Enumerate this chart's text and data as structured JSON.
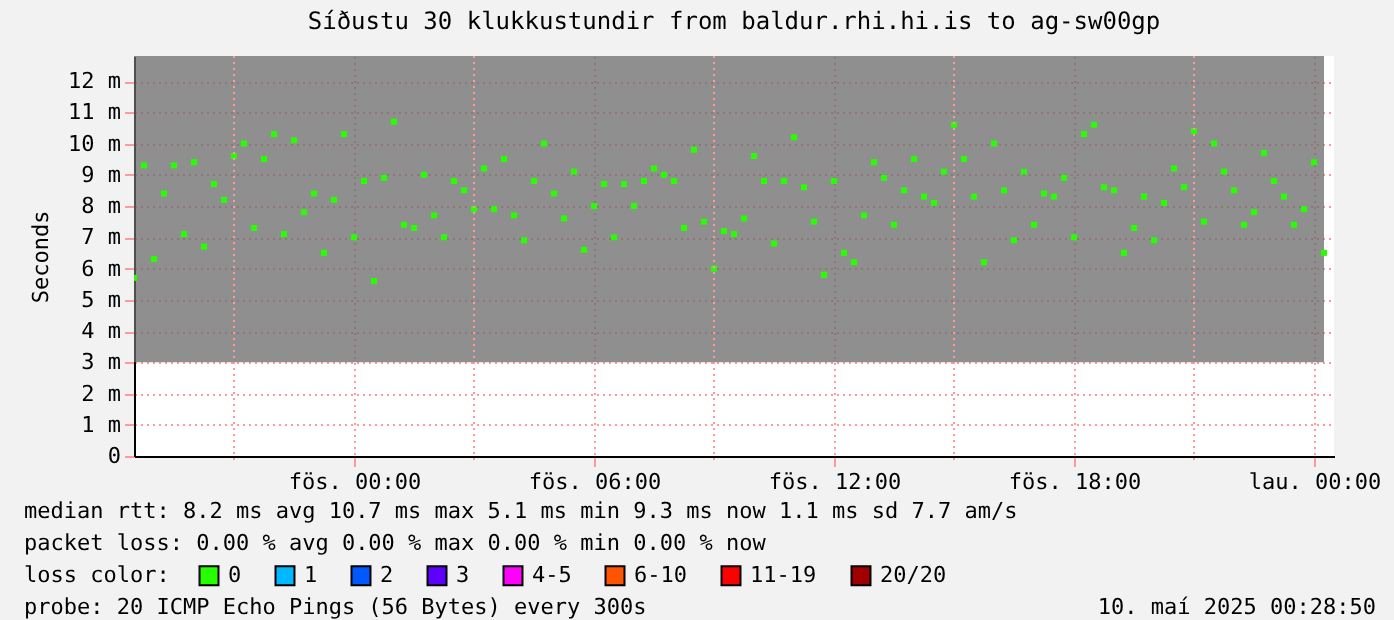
{
  "chart_data": {
    "type": "scatter",
    "title": "Síðustu 30 klukkustundir from baldur.rhi.hi.is to ag-sw00gp",
    "ylabel": "Seconds",
    "legend_title": "loss color:",
    "legend": "bottom",
    "marker": "square",
    "grid": true,
    "xlim": [
      "2025-05-08T18:30",
      "2025-05-10T00:30"
    ],
    "xticks": [
      {
        "value": "2025-05-08T21:00",
        "label": null
      },
      {
        "value": "2025-05-09T00:00",
        "label": "fös. 00:00"
      },
      {
        "value": "2025-05-09T03:00",
        "label": null
      },
      {
        "value": "2025-05-09T06:00",
        "label": "fös. 06:00"
      },
      {
        "value": "2025-05-09T09:00",
        "label": null
      },
      {
        "value": "2025-05-09T12:00",
        "label": "fös. 12:00"
      },
      {
        "value": "2025-05-09T15:00",
        "label": null
      },
      {
        "value": "2025-05-09T18:00",
        "label": "fös. 18:00"
      },
      {
        "value": "2025-05-09T21:00",
        "label": null
      },
      {
        "value": "2025-05-10T00:00",
        "label": "lau. 00:00"
      }
    ],
    "ylim": [
      0,
      12.8
    ],
    "yticks": [
      0,
      {
        "value": 1,
        "label": "1 m"
      },
      {
        "value": 2,
        "label": "2 m"
      },
      {
        "value": 3,
        "label": "3 m"
      },
      {
        "value": 4,
        "label": "4 m"
      },
      {
        "value": 5,
        "label": "5 m"
      },
      {
        "value": 6,
        "label": "6 m"
      },
      {
        "value": 7,
        "label": "7 m"
      },
      {
        "value": 8,
        "label": "8 m"
      },
      {
        "value": 9,
        "label": "9 m"
      },
      {
        "value": 10,
        "label": "10 m"
      },
      {
        "value": 11,
        "label": "11 m"
      },
      {
        "value": 12,
        "label": "12 m"
      }
    ],
    "x": [
      "2025-05-08T18:30",
      "2025-05-08T18:45",
      "2025-05-08T19:00",
      "2025-05-08T19:15",
      "2025-05-08T19:30",
      "2025-05-08T19:45",
      "2025-05-08T20:00",
      "2025-05-08T20:15",
      "2025-05-08T20:30",
      "2025-05-08T20:45",
      "2025-05-08T21:00",
      "2025-05-08T21:15",
      "2025-05-08T21:30",
      "2025-05-08T21:45",
      "2025-05-08T22:00",
      "2025-05-08T22:15",
      "2025-05-08T22:30",
      "2025-05-08T22:45",
      "2025-05-08T23:00",
      "2025-05-08T23:15",
      "2025-05-08T23:30",
      "2025-05-08T23:45",
      "2025-05-09T00:00",
      "2025-05-09T00:15",
      "2025-05-09T00:30",
      "2025-05-09T00:45",
      "2025-05-09T01:00",
      "2025-05-09T01:15",
      "2025-05-09T01:30",
      "2025-05-09T01:45",
      "2025-05-09T02:00",
      "2025-05-09T02:15",
      "2025-05-09T02:30",
      "2025-05-09T02:45",
      "2025-05-09T03:00",
      "2025-05-09T03:15",
      "2025-05-09T03:30",
      "2025-05-09T03:45",
      "2025-05-09T04:00",
      "2025-05-09T04:15",
      "2025-05-09T04:30",
      "2025-05-09T04:45",
      "2025-05-09T05:00",
      "2025-05-09T05:15",
      "2025-05-09T05:30",
      "2025-05-09T05:45",
      "2025-05-09T06:00",
      "2025-05-09T06:15",
      "2025-05-09T06:30",
      "2025-05-09T06:45",
      "2025-05-09T07:00",
      "2025-05-09T07:15",
      "2025-05-09T07:30",
      "2025-05-09T07:45",
      "2025-05-09T08:00",
      "2025-05-09T08:15",
      "2025-05-09T08:30",
      "2025-05-09T08:45",
      "2025-05-09T09:00",
      "2025-05-09T09:15",
      "2025-05-09T09:30",
      "2025-05-09T09:45",
      "2025-05-09T10:00",
      "2025-05-09T10:15",
      "2025-05-09T10:30",
      "2025-05-09T10:45",
      "2025-05-09T11:00",
      "2025-05-09T11:15",
      "2025-05-09T11:30",
      "2025-05-09T11:45",
      "2025-05-09T12:00",
      "2025-05-09T12:15",
      "2025-05-09T12:30",
      "2025-05-09T12:45",
      "2025-05-09T13:00",
      "2025-05-09T13:15",
      "2025-05-09T13:30",
      "2025-05-09T13:45",
      "2025-05-09T14:00",
      "2025-05-09T14:15",
      "2025-05-09T14:30",
      "2025-05-09T14:45",
      "2025-05-09T15:00",
      "2025-05-09T15:15",
      "2025-05-09T15:30",
      "2025-05-09T15:45",
      "2025-05-09T16:00",
      "2025-05-09T16:15",
      "2025-05-09T16:30",
      "2025-05-09T16:45",
      "2025-05-09T17:00",
      "2025-05-09T17:15",
      "2025-05-09T17:30",
      "2025-05-09T17:45",
      "2025-05-09T18:00",
      "2025-05-09T18:15",
      "2025-05-09T18:30",
      "2025-05-09T18:45",
      "2025-05-09T19:00",
      "2025-05-09T19:15",
      "2025-05-09T19:30",
      "2025-05-09T19:45",
      "2025-05-09T20:00",
      "2025-05-09T20:15",
      "2025-05-09T20:30",
      "2025-05-09T20:45",
      "2025-05-09T21:00",
      "2025-05-09T21:15",
      "2025-05-09T21:30",
      "2025-05-09T21:45",
      "2025-05-09T22:00",
      "2025-05-09T22:15",
      "2025-05-09T22:30",
      "2025-05-09T22:45",
      "2025-05-09T23:00",
      "2025-05-09T23:15",
      "2025-05-09T23:30",
      "2025-05-09T23:45",
      "2025-05-10T00:00",
      "2025-05-10T00:15"
    ],
    "series": [
      {
        "name": "0",
        "color": "#26ff00",
        "values": [
          5.7,
          9.3,
          6.3,
          8.4,
          9.3,
          7.1,
          9.4,
          6.7,
          8.7,
          8.2,
          9.6,
          10.0,
          7.3,
          9.5,
          10.3,
          7.1,
          10.1,
          7.8,
          8.4,
          6.5,
          8.2,
          10.3,
          7.0,
          8.8,
          5.6,
          8.9,
          10.7,
          7.4,
          7.3,
          9.0,
          7.7,
          7.0,
          8.8,
          8.5,
          7.9,
          9.2,
          7.9,
          9.5,
          7.7,
          6.9,
          8.8,
          10.0,
          8.4,
          7.6,
          9.1,
          6.6,
          8.0,
          8.7,
          7.0,
          8.7,
          8.0,
          8.8,
          9.2,
          9.0,
          8.8,
          7.3,
          9.8,
          7.5,
          6.0,
          7.2,
          7.1,
          7.6,
          9.6,
          8.8,
          6.8,
          8.8,
          10.2,
          8.6,
          7.5,
          5.8,
          8.8,
          6.5,
          6.2,
          7.7,
          9.4,
          8.9,
          7.4,
          8.5,
          9.5,
          8.3,
          8.1,
          9.1,
          10.6,
          9.5,
          8.3,
          6.2,
          10.0,
          8.5,
          6.9,
          9.1,
          7.4,
          8.4,
          8.3,
          8.9,
          7.0,
          10.3,
          10.6,
          8.6,
          8.5,
          6.5,
          7.3,
          8.3,
          6.9,
          8.1,
          9.2,
          8.6,
          10.4,
          7.5,
          10.0,
          9.1,
          8.5,
          7.4,
          7.8,
          9.7,
          8.8,
          8.3,
          7.4,
          7.9,
          9.4,
          6.5
        ],
        "lower": [
          3,
          3,
          3,
          3,
          3,
          3,
          3,
          3,
          3,
          3,
          3,
          3,
          3,
          3,
          3,
          3,
          3,
          3,
          3,
          3,
          3,
          3,
          3,
          3,
          3,
          3,
          3,
          3,
          3,
          3,
          3,
          3,
          3,
          3,
          3,
          3,
          3,
          3,
          3,
          3,
          3,
          3,
          3,
          3,
          3,
          3,
          3,
          3,
          3,
          3,
          3,
          3,
          3,
          3,
          3,
          3,
          3,
          3,
          3,
          3,
          3,
          3,
          3,
          3,
          3,
          3,
          3,
          3,
          3,
          3,
          3,
          3,
          3,
          3,
          3,
          3,
          3,
          3,
          3,
          3,
          3,
          3,
          3,
          3,
          3,
          3,
          3,
          3,
          3,
          3,
          3,
          3,
          3,
          3,
          3,
          3,
          3,
          3,
          3,
          3,
          3,
          3,
          3,
          3,
          3,
          3,
          3,
          3,
          3,
          3,
          3,
          3,
          3,
          3,
          3,
          3,
          3,
          3,
          3,
          3
        ],
        "upper": [
          12.8,
          12.8,
          12.8,
          12.8,
          12.8,
          12.8,
          12.8,
          12.8,
          12.8,
          12.8,
          12.8,
          12.8,
          12.8,
          12.8,
          12.8,
          12.8,
          12.8,
          12.8,
          12.8,
          12.8,
          12.8,
          12.8,
          12.8,
          12.8,
          12.8,
          12.8,
          12.8,
          12.8,
          12.8,
          12.8,
          12.8,
          12.8,
          12.8,
          12.8,
          12.8,
          12.8,
          12.8,
          12.8,
          12.8,
          12.8,
          12.8,
          12.8,
          12.8,
          12.8,
          12.8,
          12.8,
          12.8,
          12.8,
          12.8,
          12.8,
          12.8,
          12.8,
          12.8,
          12.8,
          12.8,
          12.8,
          12.8,
          12.8,
          12.8,
          12.8,
          12.8,
          12.8,
          12.8,
          12.8,
          12.8,
          12.8,
          12.8,
          12.8,
          12.8,
          12.8,
          12.8,
          12.8,
          12.8,
          12.8,
          12.8,
          12.8,
          12.8,
          12.8,
          12.8,
          12.8,
          12.8,
          12.8,
          12.8,
          12.8,
          12.8,
          12.8,
          12.8,
          12.8,
          12.8,
          12.8,
          12.8,
          12.8,
          12.8,
          12.8,
          12.8,
          12.8,
          12.8,
          12.8,
          12.8,
          12.8,
          12.8,
          12.8,
          12.8,
          12.8,
          12.8,
          12.8,
          12.8,
          12.8,
          12.8,
          12.8,
          12.8,
          12.8,
          12.8,
          12.8,
          12.8,
          12.8,
          12.8,
          12.8,
          12.8,
          12.8
        ]
      },
      {
        "name": "1",
        "color": "#00b8ff",
        "values": [
          null,
          null,
          null,
          null,
          null,
          null,
          null,
          null,
          null,
          null,
          null,
          null,
          null,
          null,
          null,
          null,
          null,
          null,
          null,
          null,
          null,
          null,
          null,
          null,
          null,
          null,
          null,
          null,
          null,
          null,
          null,
          null,
          null,
          null,
          null,
          null,
          null,
          null,
          null,
          null,
          null,
          null,
          null,
          null,
          null,
          null,
          null,
          null,
          null,
          null,
          null,
          null,
          null,
          null,
          null,
          null,
          null,
          null,
          null,
          null,
          null,
          null,
          null,
          null,
          null,
          null,
          null,
          null,
          null,
          null,
          null,
          null,
          null,
          null,
          null,
          null,
          null,
          null,
          null,
          null,
          null,
          null,
          null,
          null,
          null,
          null,
          null,
          null,
          null,
          null,
          null,
          null,
          null,
          null,
          null,
          null,
          null,
          null,
          null,
          null,
          null,
          null,
          null,
          null,
          null,
          null,
          null,
          null,
          null,
          null,
          null,
          null,
          null,
          null,
          null,
          null,
          null,
          null,
          null,
          null
        ]
      },
      {
        "name": "2",
        "color": "#0059ff",
        "values": [
          null,
          null,
          null,
          null,
          null,
          null,
          null,
          null,
          null,
          null,
          null,
          null,
          null,
          null,
          null,
          null,
          null,
          null,
          null,
          null,
          null,
          null,
          null,
          null,
          null,
          null,
          null,
          null,
          null,
          null,
          null,
          null,
          null,
          null,
          null,
          null,
          null,
          null,
          null,
          null,
          null,
          null,
          null,
          null,
          null,
          null,
          null,
          null,
          null,
          null,
          null,
          null,
          null,
          null,
          null,
          null,
          null,
          null,
          null,
          null,
          null,
          null,
          null,
          null,
          null,
          null,
          null,
          null,
          null,
          null,
          null,
          null,
          null,
          null,
          null,
          null,
          null,
          null,
          null,
          null,
          null,
          null,
          null,
          null,
          null,
          null,
          null,
          null,
          null,
          null,
          null,
          null,
          null,
          null,
          null,
          null,
          null,
          null,
          null,
          null,
          null,
          null,
          null,
          null,
          null,
          null,
          null,
          null,
          null,
          null,
          null,
          null,
          null,
          null,
          null,
          null,
          null,
          null,
          null,
          null
        ]
      },
      {
        "name": "3",
        "color": "#5e00ff",
        "values": [
          null,
          null,
          null,
          null,
          null,
          null,
          null,
          null,
          null,
          null,
          null,
          null,
          null,
          null,
          null,
          null,
          null,
          null,
          null,
          null,
          null,
          null,
          null,
          null,
          null,
          null,
          null,
          null,
          null,
          null,
          null,
          null,
          null,
          null,
          null,
          null,
          null,
          null,
          null,
          null,
          null,
          null,
          null,
          null,
          null,
          null,
          null,
          null,
          null,
          null,
          null,
          null,
          null,
          null,
          null,
          null,
          null,
          null,
          null,
          null,
          null,
          null,
          null,
          null,
          null,
          null,
          null,
          null,
          null,
          null,
          null,
          null,
          null,
          null,
          null,
          null,
          null,
          null,
          null,
          null,
          null,
          null,
          null,
          null,
          null,
          null,
          null,
          null,
          null,
          null,
          null,
          null,
          null,
          null,
          null,
          null,
          null,
          null,
          null,
          null,
          null,
          null,
          null,
          null,
          null,
          null,
          null,
          null,
          null,
          null,
          null,
          null,
          null,
          null,
          null,
          null,
          null,
          null,
          null,
          null
        ]
      },
      {
        "name": "4-5",
        "color": "#ff00ff",
        "values": [
          null,
          null,
          null,
          null,
          null,
          null,
          null,
          null,
          null,
          null,
          null,
          null,
          null,
          null,
          null,
          null,
          null,
          null,
          null,
          null,
          null,
          null,
          null,
          null,
          null,
          null,
          null,
          null,
          null,
          null,
          null,
          null,
          null,
          null,
          null,
          null,
          null,
          null,
          null,
          null,
          null,
          null,
          null,
          null,
          null,
          null,
          null,
          null,
          null,
          null,
          null,
          null,
          null,
          null,
          null,
          null,
          null,
          null,
          null,
          null,
          null,
          null,
          null,
          null,
          null,
          null,
          null,
          null,
          null,
          null,
          null,
          null,
          null,
          null,
          null,
          null,
          null,
          null,
          null,
          null,
          null,
          null,
          null,
          null,
          null,
          null,
          null,
          null,
          null,
          null,
          null,
          null,
          null,
          null,
          null,
          null,
          null,
          null,
          null,
          null,
          null,
          null,
          null,
          null,
          null,
          null,
          null,
          null,
          null,
          null,
          null,
          null,
          null,
          null,
          null,
          null,
          null,
          null,
          null,
          null
        ]
      },
      {
        "name": "6-10",
        "color": "#ff5500",
        "values": [
          null,
          null,
          null,
          null,
          null,
          null,
          null,
          null,
          null,
          null,
          null,
          null,
          null,
          null,
          null,
          null,
          null,
          null,
          null,
          null,
          null,
          null,
          null,
          null,
          null,
          null,
          null,
          null,
          null,
          null,
          null,
          null,
          null,
          null,
          null,
          null,
          null,
          null,
          null,
          null,
          null,
          null,
          null,
          null,
          null,
          null,
          null,
          null,
          null,
          null,
          null,
          null,
          null,
          null,
          null,
          null,
          null,
          null,
          null,
          null,
          null,
          null,
          null,
          null,
          null,
          null,
          null,
          null,
          null,
          null,
          null,
          null,
          null,
          null,
          null,
          null,
          null,
          null,
          null,
          null,
          null,
          null,
          null,
          null,
          null,
          null,
          null,
          null,
          null,
          null,
          null,
          null,
          null,
          null,
          null,
          null,
          null,
          null,
          null,
          null,
          null,
          null,
          null,
          null,
          null,
          null,
          null,
          null,
          null,
          null,
          null,
          null,
          null,
          null,
          null,
          null,
          null,
          null,
          null,
          null
        ]
      },
      {
        "name": "11-19",
        "color": "#ff0000",
        "values": [
          null,
          null,
          null,
          null,
          null,
          null,
          null,
          null,
          null,
          null,
          null,
          null,
          null,
          null,
          null,
          null,
          null,
          null,
          null,
          null,
          null,
          null,
          null,
          null,
          null,
          null,
          null,
          null,
          null,
          null,
          null,
          null,
          null,
          null,
          null,
          null,
          null,
          null,
          null,
          null,
          null,
          null,
          null,
          null,
          null,
          null,
          null,
          null,
          null,
          null,
          null,
          null,
          null,
          null,
          null,
          null,
          null,
          null,
          null,
          null,
          null,
          null,
          null,
          null,
          null,
          null,
          null,
          null,
          null,
          null,
          null,
          null,
          null,
          null,
          null,
          null,
          null,
          null,
          null,
          null,
          null,
          null,
          null,
          null,
          null,
          null,
          null,
          null,
          null,
          null,
          null,
          null,
          null,
          null,
          null,
          null,
          null,
          null,
          null,
          null,
          null,
          null,
          null,
          null,
          null,
          null,
          null,
          null,
          null,
          null,
          null,
          null,
          null,
          null,
          null,
          null,
          null,
          null,
          null,
          null
        ]
      },
      {
        "name": "20/20",
        "color": "#a10000",
        "values": [
          null,
          null,
          null,
          null,
          null,
          null,
          null,
          null,
          null,
          null,
          null,
          null,
          null,
          null,
          null,
          null,
          null,
          null,
          null,
          null,
          null,
          null,
          null,
          null,
          null,
          null,
          null,
          null,
          null,
          null,
          null,
          null,
          null,
          null,
          null,
          null,
          null,
          null,
          null,
          null,
          null,
          null,
          null,
          null,
          null,
          null,
          null,
          null,
          null,
          null,
          null,
          null,
          null,
          null,
          null,
          null,
          null,
          null,
          null,
          null,
          null,
          null,
          null,
          null,
          null,
          null,
          null,
          null,
          null,
          null,
          null,
          null,
          null,
          null,
          null,
          null,
          null,
          null,
          null,
          null,
          null,
          null,
          null,
          null,
          null,
          null,
          null,
          null,
          null,
          null,
          null,
          null,
          null,
          null,
          null,
          null,
          null,
          null,
          null,
          null,
          null,
          null,
          null,
          null,
          null,
          null,
          null,
          null,
          null,
          null,
          null,
          null,
          null,
          null,
          null,
          null,
          null,
          null,
          null,
          null
        ]
      }
    ],
    "annotations": [
      "median rtt:  8.2 ms avg  10.7 ms max  5.1 ms min  9.3 ms now  1.1 ms sd  7.7   am/s",
      "packet loss:  0.00 % avg  0.00 % max  0.00 % min  0.00 % now",
      "probe:        20 ICMP Echo Pings (56 Bytes) every 300s",
      "10. maí 2025 00:28:50"
    ]
  }
}
